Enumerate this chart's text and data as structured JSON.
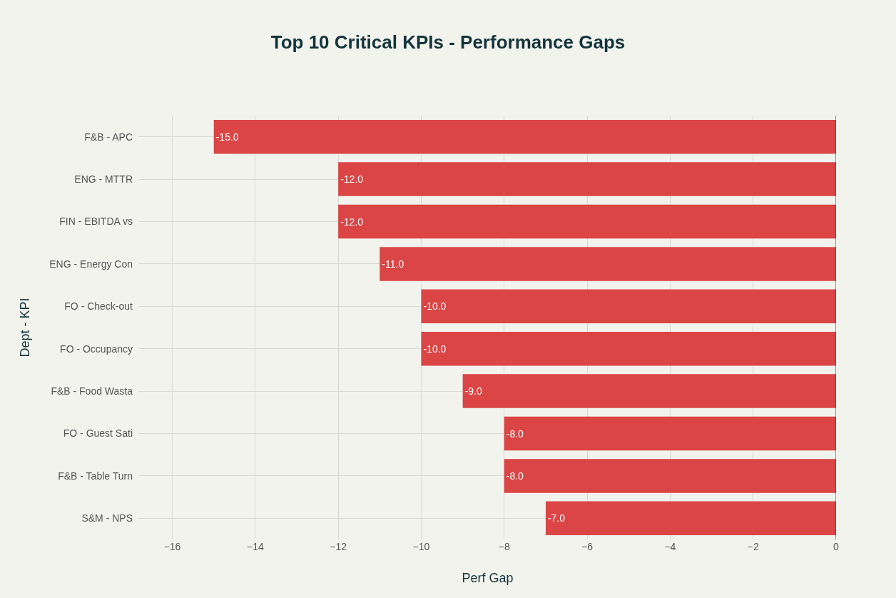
{
  "chart_data": {
    "type": "bar",
    "orientation": "horizontal",
    "title": "Top 10 Critical KPIs - Performance Gaps",
    "xlabel": "Perf Gap",
    "ylabel": "Dept - KPI",
    "categories": [
      "F&B - APC",
      "ENG - MTTR",
      "FIN - EBITDA vs",
      "ENG - Energy Con",
      "FO - Check-out",
      "FO - Occupancy",
      "F&B - Food Wasta",
      "FO - Guest Sati",
      "F&B - Table Turn",
      "S&M - NPS"
    ],
    "values": [
      -15,
      -12,
      -12,
      -11,
      -10,
      -10,
      -9,
      -8,
      -8,
      -7
    ],
    "color": "#db4545",
    "xlim": [
      -16.8,
      0
    ],
    "xticks": [
      {
        "value": -16,
        "label": "−16"
      },
      {
        "value": -14,
        "label": "−14"
      },
      {
        "value": -12,
        "label": "−12"
      },
      {
        "value": -10,
        "label": "−10"
      },
      {
        "value": -8,
        "label": "−8"
      },
      {
        "value": -6,
        "label": "−6"
      },
      {
        "value": -4,
        "label": "−4"
      },
      {
        "value": -2,
        "label": "−2"
      },
      0
    ],
    "value_labels": [
      "-15.0",
      "-12.0",
      "-12.0",
      "-11.0",
      "-10.0",
      "-10.0",
      "-9.0",
      "-8.0",
      "-8.0",
      "-7.0"
    ],
    "grid": true,
    "legend": false
  }
}
